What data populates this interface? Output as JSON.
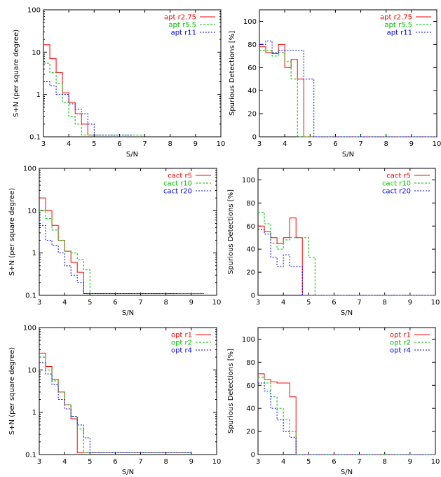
{
  "colors": {
    "red": "#ff0000",
    "green": "#00c000",
    "blue": "#0000ff"
  },
  "chart_data": [
    {
      "type": "line",
      "xlabel": "S/N",
      "ylabel": "S+N (per square degree)",
      "yscale": "log",
      "xlim": [
        3,
        10
      ],
      "ylim": [
        0.1,
        100
      ],
      "xticks": [
        "3",
        "4",
        "5",
        "6",
        "7",
        "8",
        "9",
        "10"
      ],
      "yticks": [
        "0.1",
        "1",
        "10",
        "100"
      ],
      "legend_position": "top-right",
      "series": [
        {
          "name": "apt r2.75",
          "color": "red",
          "style": "solid",
          "points": [
            [
              3.0,
              15
            ],
            [
              3.25,
              7
            ],
            [
              3.5,
              3.3
            ],
            [
              3.75,
              1.1
            ],
            [
              4.0,
              0.65
            ],
            [
              4.25,
              0.35
            ],
            [
              4.5,
              0.2
            ],
            [
              4.75,
              0.11
            ],
            [
              5.25,
              0.11
            ]
          ]
        },
        {
          "name": "apt r5.5",
          "color": "green",
          "style": "dashed",
          "points": [
            [
              3.0,
              5.5
            ],
            [
              3.25,
              3.3
            ],
            [
              3.5,
              1.8
            ],
            [
              3.75,
              0.65
            ],
            [
              4.0,
              0.3
            ],
            [
              4.25,
              0.2
            ],
            [
              4.5,
              0.11
            ],
            [
              4.75,
              0.11
            ],
            [
              7.0,
              0.11
            ]
          ]
        },
        {
          "name": "apt r11",
          "color": "blue",
          "style": "dotted",
          "points": [
            [
              3.0,
              2.0
            ],
            [
              3.25,
              1.6
            ],
            [
              3.5,
              1.0
            ],
            [
              3.75,
              1.0
            ],
            [
              4.0,
              0.6
            ],
            [
              4.25,
              0.45
            ],
            [
              4.5,
              0.35
            ],
            [
              4.75,
              0.2
            ],
            [
              5.0,
              0.11
            ],
            [
              5.25,
              0.11
            ],
            [
              6.5,
              0.11
            ]
          ]
        }
      ]
    },
    {
      "type": "line",
      "xlabel": "S/N",
      "ylabel": "Spurious Detections [%]",
      "yscale": "linear",
      "xlim": [
        3,
        10
      ],
      "ylim": [
        0,
        110
      ],
      "xticks": [
        "3",
        "4",
        "5",
        "6",
        "7",
        "8",
        "9",
        "10"
      ],
      "yticks": [
        "0",
        "20",
        "40",
        "60",
        "80",
        "100"
      ],
      "legend_position": "top-right",
      "series": [
        {
          "name": "apt r2.75",
          "color": "red",
          "style": "solid",
          "points": [
            [
              3.0,
              78
            ],
            [
              3.25,
              73
            ],
            [
              3.5,
              72
            ],
            [
              3.75,
              80
            ],
            [
              4.0,
              60
            ],
            [
              4.25,
              67
            ],
            [
              4.5,
              50
            ],
            [
              4.75,
              0
            ],
            [
              10.0,
              0
            ]
          ]
        },
        {
          "name": "apt r5.5",
          "color": "green",
          "style": "dashed",
          "points": [
            [
              3.0,
              75
            ],
            [
              3.25,
              75
            ],
            [
              3.5,
              70
            ],
            [
              3.75,
              73
            ],
            [
              4.0,
              65
            ],
            [
              4.25,
              50
            ],
            [
              4.5,
              0
            ],
            [
              10.0,
              0
            ]
          ]
        },
        {
          "name": "apt r11",
          "color": "blue",
          "style": "dotted",
          "points": [
            [
              3.0,
              80
            ],
            [
              3.25,
              83
            ],
            [
              3.5,
              73
            ],
            [
              3.75,
              75
            ],
            [
              4.75,
              50
            ],
            [
              5.0,
              50
            ],
            [
              5.15,
              0
            ],
            [
              10.0,
              0
            ]
          ]
        }
      ]
    },
    {
      "type": "line",
      "xlabel": "S/N",
      "ylabel": "S+N (per square degree)",
      "yscale": "log",
      "xlim": [
        3,
        10
      ],
      "ylim": [
        0.1,
        100
      ],
      "xticks": [
        "3",
        "4",
        "5",
        "6",
        "7",
        "8",
        "9",
        "10"
      ],
      "yticks": [
        "0.1",
        "1",
        "10",
        "100"
      ],
      "legend_position": "top-right",
      "series": [
        {
          "name": "cact r5",
          "color": "red",
          "style": "solid",
          "points": [
            [
              3.0,
              20
            ],
            [
              3.25,
              10
            ],
            [
              3.5,
              4.5
            ],
            [
              3.75,
              2.0
            ],
            [
              4.0,
              1.1
            ],
            [
              4.25,
              0.6
            ],
            [
              4.5,
              0.35
            ],
            [
              4.75,
              0.11
            ],
            [
              9.5,
              0.11
            ]
          ]
        },
        {
          "name": "cact r10",
          "color": "green",
          "style": "dashed",
          "points": [
            [
              3.0,
              10
            ],
            [
              3.25,
              6.5
            ],
            [
              3.5,
              3.5
            ],
            [
              3.75,
              2.0
            ],
            [
              4.0,
              1.1
            ],
            [
              4.25,
              1.0
            ],
            [
              4.5,
              0.7
            ],
            [
              4.75,
              0.4
            ],
            [
              5.0,
              0.11
            ],
            [
              9.5,
              0.11
            ]
          ]
        },
        {
          "name": "cact r20",
          "color": "blue",
          "style": "dotted",
          "points": [
            [
              3.0,
              4.5
            ],
            [
              3.25,
              2.0
            ],
            [
              3.5,
              1.5
            ],
            [
              3.75,
              1.0
            ],
            [
              4.0,
              0.5
            ],
            [
              4.25,
              0.3
            ],
            [
              4.5,
              0.2
            ],
            [
              4.75,
              0.11
            ],
            [
              8.5,
              0.11
            ]
          ]
        }
      ]
    },
    {
      "type": "line",
      "xlabel": "S/N",
      "ylabel": "Spurious Detections [%]",
      "yscale": "linear",
      "xlim": [
        3,
        10
      ],
      "ylim": [
        0,
        110
      ],
      "xticks": [
        "3",
        "4",
        "5",
        "6",
        "7",
        "8",
        "9",
        "10"
      ],
      "yticks": [
        "0",
        "20",
        "40",
        "60",
        "80",
        "100"
      ],
      "legend_position": "top-right",
      "series": [
        {
          "name": "cact r5",
          "color": "red",
          "style": "solid",
          "points": [
            [
              3.0,
              60
            ],
            [
              3.25,
              55
            ],
            [
              3.5,
              50
            ],
            [
              3.75,
              45
            ],
            [
              4.0,
              50
            ],
            [
              4.25,
              67
            ],
            [
              4.5,
              50
            ],
            [
              4.75,
              0
            ],
            [
              10.0,
              0
            ]
          ]
        },
        {
          "name": "cact r10",
          "color": "green",
          "style": "dashed",
          "points": [
            [
              3.0,
              72
            ],
            [
              3.25,
              62
            ],
            [
              3.5,
              45
            ],
            [
              3.75,
              40
            ],
            [
              4.0,
              48
            ],
            [
              4.25,
              50
            ],
            [
              4.75,
              50
            ],
            [
              5.0,
              33
            ],
            [
              5.25,
              0
            ],
            [
              10.0,
              0
            ]
          ]
        },
        {
          "name": "cact r20",
          "color": "blue",
          "style": "dotted",
          "points": [
            [
              3.0,
              57
            ],
            [
              3.25,
              53
            ],
            [
              3.5,
              33
            ],
            [
              3.75,
              25
            ],
            [
              4.0,
              35
            ],
            [
              4.25,
              25
            ],
            [
              4.75,
              0
            ],
            [
              10.0,
              0
            ]
          ]
        }
      ]
    },
    {
      "type": "line",
      "xlabel": "S/N",
      "ylabel": "S+N (per square degree)",
      "yscale": "log",
      "xlim": [
        3,
        10
      ],
      "ylim": [
        0.1,
        100
      ],
      "xticks": [
        "3",
        "4",
        "5",
        "6",
        "7",
        "8",
        "9",
        "10"
      ],
      "yticks": [
        "0.1",
        "1",
        "10",
        "100"
      ],
      "legend_position": "top-right",
      "series": [
        {
          "name": "opt r1",
          "color": "red",
          "style": "solid",
          "points": [
            [
              3.0,
              25
            ],
            [
              3.25,
              12
            ],
            [
              3.5,
              6
            ],
            [
              3.75,
              3
            ],
            [
              4.0,
              1.5
            ],
            [
              4.25,
              0.7
            ],
            [
              4.5,
              0.11
            ],
            [
              9.0,
              0.11
            ]
          ]
        },
        {
          "name": "opt r2",
          "color": "green",
          "style": "dashed",
          "points": [
            [
              3.0,
              20
            ],
            [
              3.25,
              10
            ],
            [
              3.5,
              5.5
            ],
            [
              3.75,
              3
            ],
            [
              4.0,
              1.5
            ],
            [
              4.25,
              0.8
            ],
            [
              4.5,
              0.4
            ],
            [
              4.75,
              0.11
            ],
            [
              9.0,
              0.11
            ]
          ]
        },
        {
          "name": "opt r4",
          "color": "blue",
          "style": "dotted",
          "points": [
            [
              3.0,
              15
            ],
            [
              3.25,
              8
            ],
            [
              3.5,
              4.5
            ],
            [
              3.75,
              2.0
            ],
            [
              4.0,
              1.2
            ],
            [
              4.25,
              0.8
            ],
            [
              4.5,
              0.5
            ],
            [
              4.75,
              0.25
            ],
            [
              5.0,
              0.11
            ],
            [
              9.0,
              0.11
            ]
          ]
        }
      ]
    },
    {
      "type": "line",
      "xlabel": "S/N",
      "ylabel": "Spurious Detections [%]",
      "yscale": "linear",
      "xlim": [
        3,
        10
      ],
      "ylim": [
        0,
        110
      ],
      "xticks": [
        "3",
        "4",
        "5",
        "6",
        "7",
        "8",
        "9",
        "10"
      ],
      "yticks": [
        "0",
        "20",
        "40",
        "60",
        "80",
        "100"
      ],
      "legend_position": "top-right",
      "series": [
        {
          "name": "opt r1",
          "color": "red",
          "style": "solid",
          "points": [
            [
              3.0,
              70
            ],
            [
              3.25,
              65
            ],
            [
              3.5,
              63
            ],
            [
              3.75,
              62
            ],
            [
              4.0,
              62
            ],
            [
              4.25,
              50
            ],
            [
              4.5,
              0
            ],
            [
              10.0,
              0
            ]
          ]
        },
        {
          "name": "opt r2",
          "color": "green",
          "style": "dashed",
          "points": [
            [
              3.0,
              67
            ],
            [
              3.25,
              62
            ],
            [
              3.5,
              50
            ],
            [
              3.75,
              40
            ],
            [
              4.0,
              30
            ],
            [
              4.25,
              20
            ],
            [
              4.5,
              0
            ],
            [
              10.0,
              0
            ]
          ]
        },
        {
          "name": "opt r4",
          "color": "blue",
          "style": "dotted",
          "points": [
            [
              3.0,
              62
            ],
            [
              3.25,
              55
            ],
            [
              3.5,
              40
            ],
            [
              3.75,
              30
            ],
            [
              4.0,
              20
            ],
            [
              4.25,
              15
            ],
            [
              4.5,
              0
            ],
            [
              10.0,
              0
            ]
          ]
        }
      ]
    }
  ]
}
